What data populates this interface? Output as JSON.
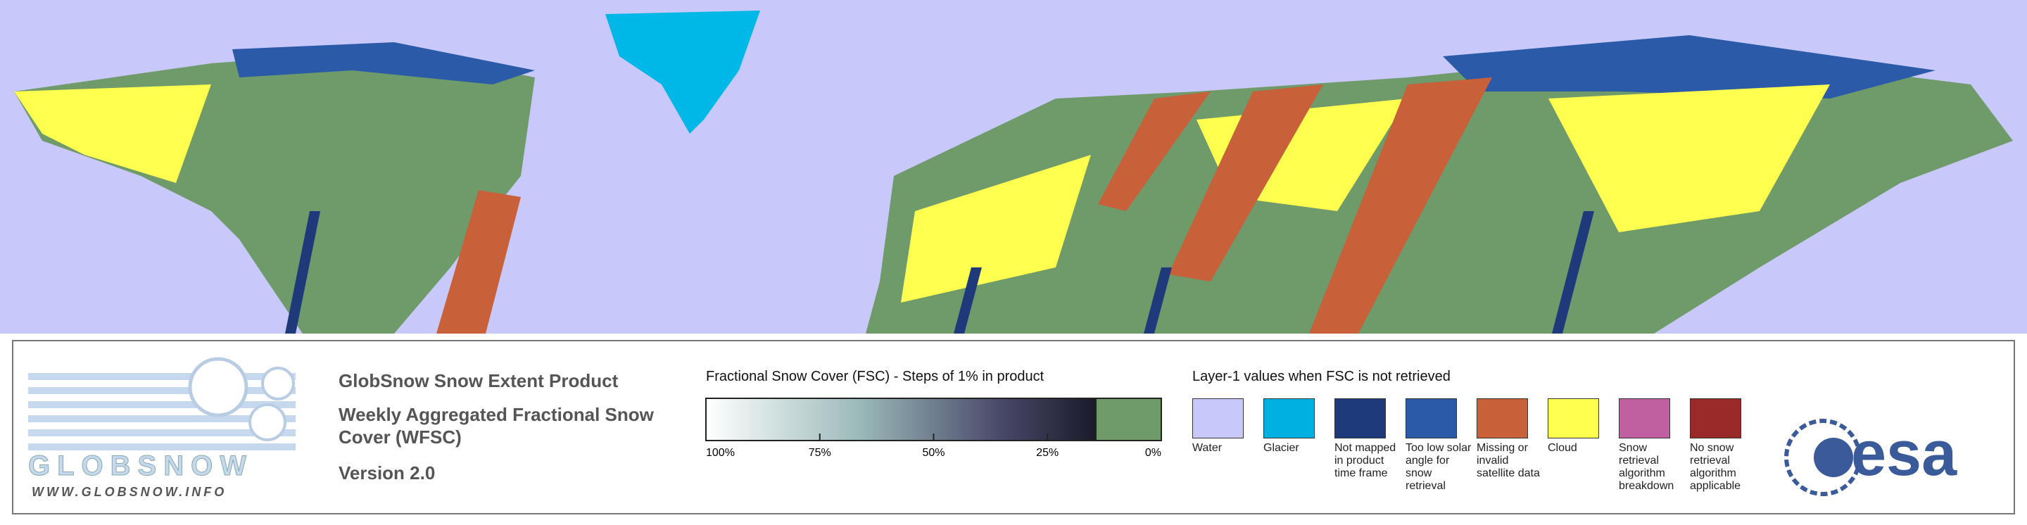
{
  "logo": {
    "name": "GLOBSNOW",
    "url": "WWW.GLOBSNOW.INFO"
  },
  "product": {
    "title": "GlobSnow Snow Extent Product",
    "subtitle": "Weekly Aggregated Fractional Snow Cover (WFSC)",
    "version": "Version 2.0"
  },
  "fsc_scale": {
    "title": "Fractional Snow Cover (FSC) - Steps of 1% in product",
    "xlim": [
      100,
      0
    ],
    "ticks": [
      {
        "value": 100,
        "label": "100%"
      },
      {
        "value": 75,
        "label": "75%"
      },
      {
        "value": 50,
        "label": "50%"
      },
      {
        "value": 25,
        "label": "25%"
      },
      {
        "value": 0,
        "label": "0%"
      }
    ]
  },
  "layer1": {
    "title": "Layer-1 values when FSC is not retrieved",
    "classes": [
      {
        "label": "Water",
        "color": "#c8c8fa"
      },
      {
        "label": "Glacier",
        "color": "#00b0e0"
      },
      {
        "label": "Not mapped in product time frame",
        "color": "#1f3a7a"
      },
      {
        "label": "Too low solar angle for snow retrieval",
        "color": "#2a5aa8"
      },
      {
        "label": "Missing or invalid satellite data",
        "color": "#c8603a"
      },
      {
        "label": "Cloud",
        "color": "#ffff50"
      },
      {
        "label": "Snow retrieval algorithm breakdown",
        "color": "#c060a0"
      },
      {
        "label": "No snow retrieval algorithm applicable",
        "color": "#9a2a2a"
      }
    ]
  },
  "esa_logo": "esa"
}
